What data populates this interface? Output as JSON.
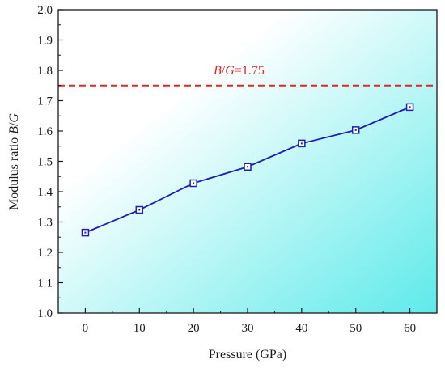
{
  "chart_data": {
    "type": "line",
    "x": [
      0,
      10,
      20,
      30,
      40,
      50,
      60
    ],
    "series": [
      {
        "values": [
          1.265,
          1.34,
          1.428,
          1.482,
          1.559,
          1.603,
          1.679
        ]
      }
    ],
    "xlabel": "Pressure (GPa)",
    "ylabel": {
      "prefix": "Modulus ratio ",
      "var1": "B",
      "slash": "/",
      "var2": "G"
    },
    "xlim": [
      -5,
      65
    ],
    "ylim": [
      1.0,
      2.0
    ],
    "x_ticks": [
      "0",
      "10",
      "20",
      "30",
      "40",
      "50",
      "60"
    ],
    "y_ticks": [
      "1.0",
      "1.1",
      "1.2",
      "1.3",
      "1.4",
      "1.5",
      "1.6",
      "1.7",
      "1.8",
      "1.9",
      "2.0"
    ],
    "x_tick_values": [
      0,
      10,
      20,
      30,
      40,
      50,
      60
    ],
    "y_tick_values": [
      1.0,
      1.1,
      1.2,
      1.3,
      1.4,
      1.5,
      1.6,
      1.7,
      1.8,
      1.9,
      2.0
    ],
    "reference_line": {
      "value": 1.75,
      "label_var1": "B",
      "label_slash": "/",
      "label_var2": "G",
      "label_rest": "=1.75",
      "color": "#d82a2a",
      "style": "dashed"
    },
    "line_color": "#1f1fb4",
    "marker": "open-square",
    "background_gradient": {
      "from": "#ffffff",
      "to": "#5eeaea"
    },
    "grid": false,
    "legend": "none"
  }
}
